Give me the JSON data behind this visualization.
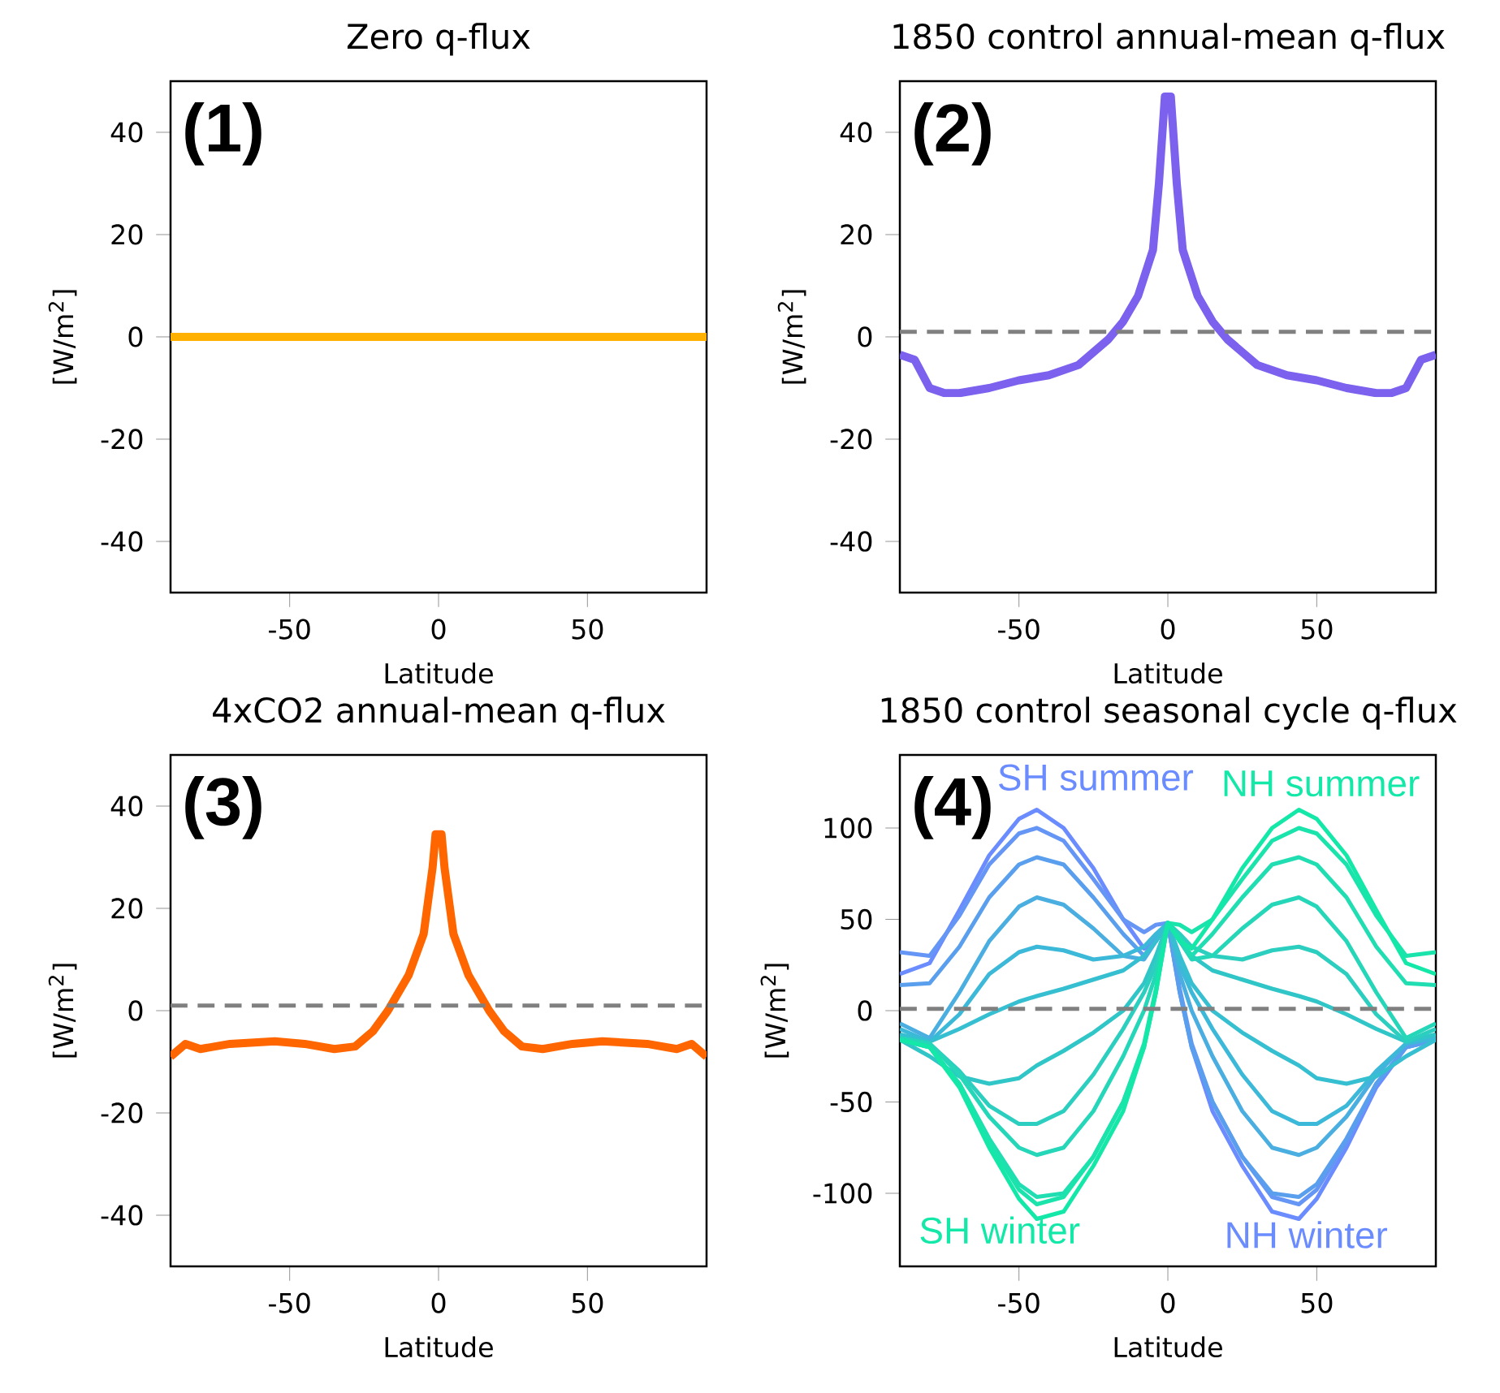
{
  "chart_data": [
    {
      "type": "line",
      "title": "Zero q-flux",
      "xlabel": "Latitude",
      "ylabel": "[W/m$^{2}$]",
      "xlim": [
        -90,
        90
      ],
      "ylim": [
        -50,
        50
      ],
      "xticks": [
        -50,
        0,
        50
      ],
      "yticks": [
        -40,
        -20,
        0,
        20,
        40
      ],
      "annotations": [
        "(1)"
      ],
      "x": [
        -90,
        -45,
        0,
        45,
        90
      ],
      "series": [
        {
          "color": "#ffb000",
          "values": [
            0,
            0,
            0,
            0,
            0
          ]
        }
      ]
    },
    {
      "type": "line",
      "title": "1850 control annual-mean q-flux",
      "xlabel": "Latitude",
      "ylabel": "[W/m$^{2}$]",
      "xlim": [
        -90,
        90
      ],
      "ylim": [
        -50,
        50
      ],
      "xticks": [
        -50,
        0,
        50
      ],
      "yticks": [
        -40,
        -20,
        0,
        20,
        40
      ],
      "annotations": [
        "(2)"
      ],
      "ref_lines": [
        {
          "axis": "y",
          "value": 1,
          "color": "#808080",
          "line_style": "dashed"
        }
      ],
      "x": [
        -90,
        -85,
        -80,
        -75,
        -70,
        -60,
        -50,
        -40,
        -30,
        -25,
        -20,
        -15,
        -10,
        -5,
        -3,
        -1,
        1,
        3,
        5,
        10,
        15,
        20,
        25,
        30,
        40,
        50,
        60,
        70,
        75,
        80,
        85,
        90
      ],
      "series": [
        {
          "color": "#7b61ee",
          "values": [
            -3.5,
            -4.5,
            -10,
            -11,
            -11,
            -10,
            -8.5,
            -7.5,
            -5.5,
            -3,
            -0.5,
            3,
            8,
            17,
            30,
            47,
            47,
            30,
            17,
            8,
            3,
            -0.5,
            -3,
            -5.5,
            -7.5,
            -8.5,
            -10,
            -11,
            -11,
            -10,
            -4.5,
            -3.5
          ]
        }
      ]
    },
    {
      "type": "line",
      "title": "4xCO2 annual-mean q-flux",
      "xlabel": "Latitude",
      "ylabel": "[W/m$^{2}$]",
      "xlim": [
        -90,
        90
      ],
      "ylim": [
        -50,
        50
      ],
      "xticks": [
        -50,
        0,
        50
      ],
      "yticks": [
        -40,
        -20,
        0,
        20,
        40
      ],
      "annotations": [
        "(3)"
      ],
      "ref_lines": [
        {
          "axis": "y",
          "value": 1,
          "color": "#808080",
          "line_style": "dashed"
        }
      ],
      "x": [
        -90,
        -85,
        -80,
        -70,
        -55,
        -45,
        -35,
        -28,
        -22,
        -17,
        -10,
        -5,
        -2,
        -1,
        1,
        2,
        5,
        10,
        17,
        22,
        28,
        35,
        45,
        55,
        70,
        80,
        85,
        90
      ],
      "series": [
        {
          "color": "#ff6600",
          "values": [
            -9,
            -6.5,
            -7.5,
            -6.5,
            -6,
            -6.5,
            -7.5,
            -7,
            -4,
            0,
            7,
            15,
            28,
            34.5,
            34.5,
            28,
            15,
            7,
            0,
            -4,
            -7,
            -7.5,
            -6.5,
            -6,
            -6.5,
            -7.5,
            -6.5,
            -9
          ]
        }
      ]
    },
    {
      "type": "line",
      "title": "1850 control seasonal cycle q-flux",
      "xlabel": "Latitude",
      "ylabel": "[W/m$^{2}$]",
      "xlim": [
        -90,
        90
      ],
      "ylim": [
        -140,
        140
      ],
      "xticks": [
        -50,
        0,
        50
      ],
      "yticks": [
        -100,
        -50,
        0,
        50,
        100
      ],
      "ref_lines": [
        {
          "axis": "y",
          "value": 1,
          "color": "#808080",
          "line_style": "dashed"
        }
      ],
      "annotations": [
        "(4)",
        "SH summer",
        "NH summer",
        "SH winter",
        "NH winter"
      ],
      "x": [
        -90,
        -80,
        -70,
        -60,
        -50,
        -44,
        -35,
        -25,
        -15,
        -8,
        -4,
        0,
        4,
        8,
        15,
        25,
        35,
        44,
        50,
        60,
        70,
        80,
        90
      ],
      "series": [
        {
          "color": "#6b8cff",
          "values": [
            20,
            26,
            55,
            85,
            105,
            110,
            100,
            78,
            50,
            34,
            38,
            48,
            10,
            -20,
            -55,
            -85,
            -110,
            -114,
            -103,
            -75,
            -42,
            -20,
            -16
          ]
        },
        {
          "color": "#6596f5",
          "values": [
            32,
            30,
            52,
            80,
            97,
            100,
            93,
            72,
            50,
            43,
            47,
            48,
            12,
            -18,
            -50,
            -80,
            -102,
            -106,
            -98,
            -72,
            -40,
            -20,
            -16
          ]
        },
        {
          "color": "#5a9fee",
          "values": [
            14,
            15,
            35,
            62,
            80,
            84,
            80,
            62,
            42,
            30,
            40,
            48,
            10,
            -20,
            -50,
            -80,
            -100,
            -102,
            -95,
            -70,
            -40,
            -20,
            -16
          ]
        },
        {
          "color": "#4aaee0",
          "values": [
            -7,
            -15,
            10,
            38,
            57,
            62,
            58,
            45,
            30,
            28,
            38,
            48,
            20,
            0,
            -25,
            -55,
            -75,
            -79,
            -75,
            -58,
            -35,
            -18,
            -15
          ]
        },
        {
          "color": "#3cb8d8",
          "values": [
            -10,
            -17,
            -2,
            20,
            32,
            35,
            33,
            28,
            30,
            35,
            42,
            48,
            25,
            10,
            -10,
            -35,
            -55,
            -62,
            -62,
            -52,
            -33,
            -18,
            -15
          ]
        },
        {
          "color": "#36bfd0",
          "values": [
            -13,
            -17,
            -10,
            -2,
            5,
            8,
            12,
            17,
            22,
            30,
            38,
            48,
            30,
            15,
            0,
            -12,
            -22,
            -30,
            -37,
            -40,
            -36,
            -25,
            -16
          ]
        },
        {
          "color": "#30c6c8",
          "values": [
            -16,
            -25,
            -36,
            -40,
            -37,
            -30,
            -22,
            -12,
            0,
            15,
            30,
            48,
            38,
            30,
            22,
            17,
            12,
            8,
            5,
            -2,
            -10,
            -17,
            -13
          ]
        },
        {
          "color": "#2ccfbf",
          "values": [
            -15,
            -18,
            -33,
            -52,
            -62,
            -62,
            -55,
            -35,
            -10,
            10,
            25,
            48,
            42,
            35,
            30,
            28,
            33,
            35,
            32,
            20,
            -2,
            -17,
            -10
          ]
        },
        {
          "color": "#26d6b8",
          "values": [
            -15,
            -18,
            -35,
            -58,
            -75,
            -79,
            -75,
            -55,
            -25,
            0,
            20,
            48,
            38,
            28,
            30,
            45,
            58,
            62,
            57,
            38,
            10,
            -15,
            -7
          ]
        },
        {
          "color": "#20ddb2",
          "values": [
            -16,
            -20,
            -40,
            -70,
            -95,
            -102,
            -100,
            -80,
            -50,
            -20,
            10,
            48,
            40,
            30,
            42,
            62,
            80,
            84,
            80,
            62,
            35,
            15,
            14
          ]
        },
        {
          "color": "#1ae3ac",
          "values": [
            -16,
            -20,
            -40,
            -72,
            -98,
            -106,
            -102,
            -80,
            -50,
            -18,
            12,
            48,
            47,
            43,
            50,
            72,
            93,
            100,
            97,
            80,
            52,
            30,
            32
          ]
        },
        {
          "color": "#14e8a8",
          "values": [
            -16,
            -20,
            -42,
            -75,
            -103,
            -114,
            -110,
            -85,
            -55,
            -20,
            10,
            48,
            38,
            34,
            50,
            78,
            100,
            110,
            105,
            85,
            55,
            26,
            20
          ]
        }
      ]
    }
  ]
}
